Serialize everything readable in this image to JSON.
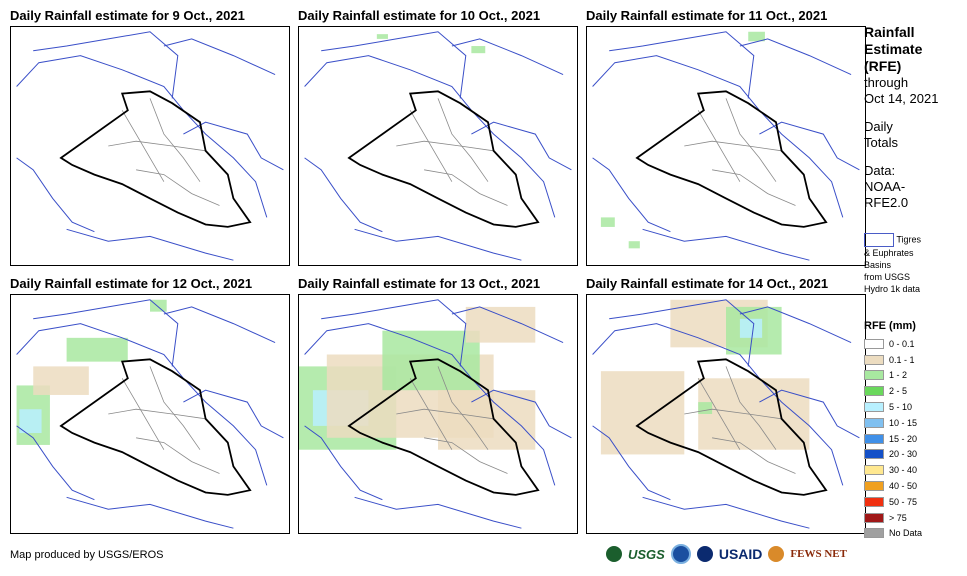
{
  "panels": [
    {
      "title": "Daily Rainfall estimate for 9 Oct., 2021",
      "rain": []
    },
    {
      "title": "Daily Rainfall estimate for 10 Oct., 2021",
      "rain": [
        [
          0.28,
          0.03,
          0.04,
          0.02,
          "#a8e8a0"
        ],
        [
          0.62,
          0.08,
          0.05,
          0.03,
          "#a8e8a0"
        ]
      ]
    },
    {
      "title": "Daily Rainfall estimate for 11 Oct., 2021",
      "rain": [
        [
          0.58,
          0.02,
          0.06,
          0.04,
          "#a8e8a0"
        ],
        [
          0.05,
          0.8,
          0.05,
          0.04,
          "#a8e8a0"
        ],
        [
          0.15,
          0.9,
          0.04,
          0.03,
          "#a8e8a0"
        ]
      ]
    },
    {
      "title": "Daily Rainfall estimate for 12 Oct., 2021",
      "rain": [
        [
          0.02,
          0.38,
          0.12,
          0.25,
          "#a8e8a0"
        ],
        [
          0.03,
          0.48,
          0.08,
          0.1,
          "#b8f0ff"
        ],
        [
          0.08,
          0.3,
          0.2,
          0.12,
          "#ecdcc0"
        ],
        [
          0.2,
          0.18,
          0.22,
          0.1,
          "#a8e8a0"
        ],
        [
          0.5,
          0.02,
          0.06,
          0.05,
          "#a8e8a0"
        ]
      ]
    },
    {
      "title": "Daily Rainfall estimate for 13 Oct., 2021",
      "rain": [
        [
          0.0,
          0.3,
          0.35,
          0.35,
          "#a8e8a0"
        ],
        [
          0.05,
          0.4,
          0.2,
          0.15,
          "#b8f0ff"
        ],
        [
          0.1,
          0.25,
          0.6,
          0.35,
          "#ecdcc0"
        ],
        [
          0.3,
          0.15,
          0.35,
          0.25,
          "#a8e8a0"
        ],
        [
          0.5,
          0.4,
          0.35,
          0.25,
          "#ecdcc0"
        ],
        [
          0.6,
          0.05,
          0.25,
          0.15,
          "#ecdcc0"
        ]
      ]
    },
    {
      "title": "Daily Rainfall estimate for 14 Oct., 2021",
      "rain": [
        [
          0.3,
          0.02,
          0.35,
          0.2,
          "#ecdcc0"
        ],
        [
          0.5,
          0.05,
          0.2,
          0.2,
          "#a8e8a0"
        ],
        [
          0.55,
          0.1,
          0.08,
          0.08,
          "#b8f0ff"
        ],
        [
          0.05,
          0.32,
          0.3,
          0.35,
          "#ecdcc0"
        ],
        [
          0.4,
          0.35,
          0.4,
          0.3,
          "#ecdcc0"
        ],
        [
          0.4,
          0.45,
          0.05,
          0.05,
          "#a8e8a0"
        ]
      ]
    }
  ],
  "side": {
    "title_lines": [
      "Rainfall",
      "Estimate",
      "(RFE)"
    ],
    "through": "through",
    "through_date": "Oct 14, 2021",
    "daily": "Daily",
    "totals": "Totals",
    "data_label": "Data:",
    "data_source_1": "NOAA-",
    "data_source_2": "RFE2.0"
  },
  "basin_legend": {
    "line1": "Tigres",
    "line2": "& Euphrates",
    "line3": "Basins",
    "line4": "from USGS",
    "line5": "Hydro 1k data"
  },
  "rfe_legend": {
    "title": "RFE (mm)",
    "items": [
      {
        "label": "0 - 0.1",
        "color": "#ffffff"
      },
      {
        "label": "0.1 - 1",
        "color": "#ecdcc0"
      },
      {
        "label": "1 - 2",
        "color": "#a8e8a0"
      },
      {
        "label": "2 - 5",
        "color": "#6ad85c"
      },
      {
        "label": "5 - 10",
        "color": "#b8f0ff"
      },
      {
        "label": "10 - 15",
        "color": "#80c0f0"
      },
      {
        "label": "15 - 20",
        "color": "#4090e8"
      },
      {
        "label": "20 - 30",
        "color": "#1450c8"
      },
      {
        "label": "30 - 40",
        "color": "#ffe890"
      },
      {
        "label": "40 - 50",
        "color": "#f0a020"
      },
      {
        "label": "50 - 75",
        "color": "#f03010"
      },
      {
        "label": "> 75",
        "color": "#a01818"
      },
      {
        "label": "No Data",
        "color": "#a0a0a0"
      }
    ]
  },
  "credit": "Map produced by USGS/EROS",
  "logos": {
    "usgs": "USGS",
    "usaid": "USAID",
    "fews": "FEWS NET"
  }
}
